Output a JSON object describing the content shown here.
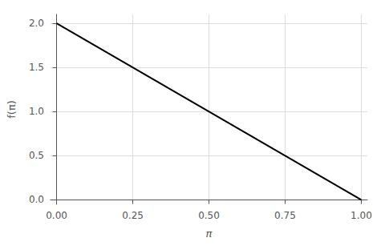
{
  "chart_data": {
    "type": "line",
    "x": [
      0.0,
      1.0
    ],
    "values": [
      2.0,
      0.0
    ],
    "color": "#000000",
    "xlabel": "π",
    "ylabel": "f(π)",
    "xlim": [
      -0.02,
      1.02
    ],
    "ylim": [
      -0.05,
      2.1
    ],
    "xticks": [
      {
        "value": 0,
        "label": "0.00"
      },
      {
        "value": 0.25,
        "label": "0.25"
      },
      {
        "value": 0.5,
        "label": "0.50"
      },
      {
        "value": 0.75,
        "label": "0.75"
      },
      {
        "value": 1,
        "label": "1.00"
      }
    ],
    "yticks": [
      {
        "value": 0,
        "label": "0.0"
      },
      0.5,
      {
        "value": 1,
        "label": "1.0"
      },
      1.5,
      {
        "value": 2,
        "label": "2.0"
      }
    ],
    "grid": true
  }
}
